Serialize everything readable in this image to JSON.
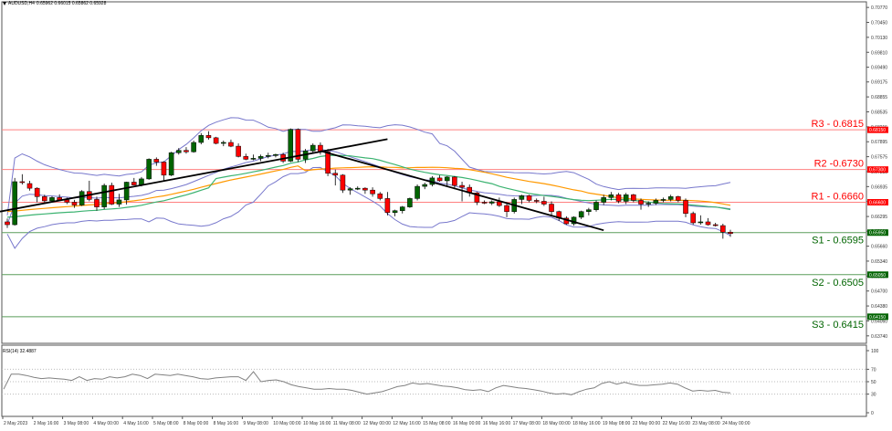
{
  "header": {
    "symbol_timeframe": "AUDUSD,H4",
    "ohlc": "0.65962 0.66015 0.65862 0.65928"
  },
  "rsi_panel": {
    "label": "RSI(14) 32.4887",
    "axis_ticks": [
      "100",
      "70",
      "50",
      "30",
      "0"
    ]
  },
  "colors": {
    "bull": "#006400",
    "bear": "#ff0000",
    "resistance": "#ff0000",
    "support": "#006400",
    "bollinger": "#7777cc",
    "ma_fast": "#3cb371",
    "ma_slow": "#ff9900",
    "trendline": "#000000",
    "rsi_line": "#808080"
  },
  "chart_data": [
    {
      "type": "candlestick",
      "title": "AUDUSD,H4",
      "ohlc_last": {
        "open": 0.65962,
        "high": 0.66015,
        "low": 0.65862,
        "close": 0.65928
      },
      "y_axis_ticks": [
        "0.70770",
        "0.70450",
        "0.70130",
        "0.69810",
        "0.69490",
        "0.69175",
        "0.68855",
        "0.68535",
        "0.68215",
        "0.67895",
        "0.67575",
        "0.67255",
        "0.66935",
        "0.66615",
        "0.66295",
        "0.65980",
        "0.65660",
        "0.65340",
        "0.65020",
        "0.64700",
        "0.64380",
        "0.64060",
        "0.63740"
      ],
      "x_axis_ticks": [
        "2 May 2023",
        "2 May 16:00",
        "3 May 08:00",
        "4 May 00:00",
        "4 May 16:00",
        "5 May 08:00",
        "8 May 00:00",
        "8 May 16:00",
        "9 May 08:00",
        "10 May 00:00",
        "10 May 16:00",
        "11 May 08:00",
        "12 May 00:00",
        "12 May 16:00",
        "15 May 08:00",
        "16 May 00:00",
        "16 May 16:00",
        "17 May 08:00",
        "18 May 00:00",
        "18 May 16:00",
        "19 May 08:00",
        "22 May 00:00",
        "22 May 16:00",
        "23 May 08:00",
        "24 May 00:00"
      ],
      "levels": [
        {
          "name": "R3",
          "label": "R3 - 0.6815",
          "value": 0.6815,
          "tag": "0.68150",
          "kind": "resistance"
        },
        {
          "name": "R2",
          "label": "R2 -0.6730",
          "value": 0.673,
          "tag": "0.67300",
          "kind": "resistance"
        },
        {
          "name": "R1",
          "label": "R1 - 0.6660",
          "value": 0.666,
          "tag": "0.66600",
          "kind": "resistance"
        },
        {
          "name": "S1",
          "label": "S1 - 0.6595",
          "value": 0.6595,
          "tag": "0.65950",
          "kind": "support"
        },
        {
          "name": "S2",
          "label": "S2 - 0.6505",
          "value": 0.6505,
          "tag": "0.65050",
          "kind": "support"
        },
        {
          "name": "S3",
          "label": "S3 - 0.6415",
          "value": 0.6415,
          "tag": "0.64150",
          "kind": "support"
        }
      ],
      "candles": [
        [
          0.6618,
          0.6625,
          0.6605,
          0.6612
        ],
        [
          0.6612,
          0.6712,
          0.661,
          0.6704
        ],
        [
          0.6704,
          0.672,
          0.6698,
          0.6703
        ],
        [
          0.67,
          0.6706,
          0.6685,
          0.669
        ],
        [
          0.669,
          0.6692,
          0.666,
          0.6672
        ],
        [
          0.6672,
          0.6676,
          0.666,
          0.6663
        ],
        [
          0.6663,
          0.6673,
          0.666,
          0.667
        ],
        [
          0.667,
          0.6677,
          0.6664,
          0.6665
        ],
        [
          0.6665,
          0.667,
          0.6656,
          0.666
        ],
        [
          0.666,
          0.6665,
          0.6648,
          0.6654
        ],
        [
          0.6654,
          0.6686,
          0.6652,
          0.6683
        ],
        [
          0.6683,
          0.6706,
          0.6662,
          0.6666
        ],
        [
          0.6666,
          0.6672,
          0.6642,
          0.665
        ],
        [
          0.665,
          0.67,
          0.6645,
          0.6696
        ],
        [
          0.6696,
          0.6702,
          0.6654,
          0.6656
        ],
        [
          0.6656,
          0.6678,
          0.665,
          0.6665
        ],
        [
          0.6665,
          0.6704,
          0.6655,
          0.6703
        ],
        [
          0.6703,
          0.6712,
          0.6696,
          0.6697
        ],
        [
          0.6697,
          0.6714,
          0.6694,
          0.671
        ],
        [
          0.671,
          0.6754,
          0.6708,
          0.6752
        ],
        [
          0.6752,
          0.6756,
          0.6738,
          0.6746
        ],
        [
          0.6746,
          0.6748,
          0.6704,
          0.6718
        ],
        [
          0.6718,
          0.6768,
          0.6716,
          0.6766
        ],
        [
          0.6766,
          0.6776,
          0.6762,
          0.6771
        ],
        [
          0.6771,
          0.6778,
          0.6764,
          0.6768
        ],
        [
          0.6768,
          0.6792,
          0.6766,
          0.6788
        ],
        [
          0.6788,
          0.6808,
          0.6784,
          0.6803
        ],
        [
          0.6803,
          0.6812,
          0.6794,
          0.6798
        ],
        [
          0.6798,
          0.68,
          0.6784,
          0.6786
        ],
        [
          0.6786,
          0.6792,
          0.678,
          0.6788
        ],
        [
          0.6788,
          0.6794,
          0.6778,
          0.678
        ],
        [
          0.678,
          0.6786,
          0.6756,
          0.6758
        ],
        [
          0.6758,
          0.6764,
          0.675,
          0.6752
        ],
        [
          0.6752,
          0.6762,
          0.675,
          0.6754
        ],
        [
          0.6754,
          0.6762,
          0.6748,
          0.6758
        ],
        [
          0.6758,
          0.6766,
          0.6754,
          0.676
        ],
        [
          0.676,
          0.6764,
          0.6756,
          0.6762
        ],
        [
          0.6762,
          0.6766,
          0.6744,
          0.6748
        ],
        [
          0.6748,
          0.6818,
          0.6746,
          0.6816
        ],
        [
          0.6816,
          0.6818,
          0.6746,
          0.6752
        ],
        [
          0.6752,
          0.6774,
          0.6744,
          0.677
        ],
        [
          0.677,
          0.6786,
          0.6764,
          0.6782
        ],
        [
          0.6782,
          0.6788,
          0.6762,
          0.6768
        ],
        [
          0.6768,
          0.6774,
          0.6716,
          0.6722
        ],
        [
          0.6722,
          0.673,
          0.6696,
          0.6718
        ],
        [
          0.6718,
          0.672,
          0.668,
          0.6686
        ],
        [
          0.6686,
          0.6692,
          0.6676,
          0.6689
        ],
        [
          0.6689,
          0.6694,
          0.6686,
          0.669
        ],
        [
          0.669,
          0.6692,
          0.6678,
          0.6686
        ],
        [
          0.6686,
          0.6692,
          0.6672,
          0.6678
        ],
        [
          0.6678,
          0.6682,
          0.6664,
          0.6668
        ],
        [
          0.6668,
          0.6682,
          0.6632,
          0.6638
        ],
        [
          0.6638,
          0.6644,
          0.663,
          0.6642
        ],
        [
          0.6642,
          0.6652,
          0.6636,
          0.665
        ],
        [
          0.665,
          0.667,
          0.6648,
          0.6668
        ],
        [
          0.6668,
          0.6698,
          0.6664,
          0.6694
        ],
        [
          0.6694,
          0.6702,
          0.6688,
          0.6698
        ],
        [
          0.6698,
          0.6716,
          0.6694,
          0.6712
        ],
        [
          0.6712,
          0.6718,
          0.6704,
          0.6706
        ],
        [
          0.6706,
          0.6716,
          0.6694,
          0.6714
        ],
        [
          0.6714,
          0.6716,
          0.6688,
          0.6696
        ],
        [
          0.6696,
          0.6704,
          0.6662,
          0.6692
        ],
        [
          0.6692,
          0.6698,
          0.6672,
          0.668
        ],
        [
          0.668,
          0.6682,
          0.6654,
          0.666
        ],
        [
          0.666,
          0.6664,
          0.6656,
          0.6658
        ],
        [
          0.6658,
          0.6664,
          0.6654,
          0.6661
        ],
        [
          0.6661,
          0.667,
          0.665,
          0.6653
        ],
        [
          0.6653,
          0.6658,
          0.6628,
          0.664
        ],
        [
          0.664,
          0.667,
          0.6636,
          0.6666
        ],
        [
          0.6666,
          0.6676,
          0.6656,
          0.6674
        ],
        [
          0.6674,
          0.6676,
          0.666,
          0.6664
        ],
        [
          0.6664,
          0.6668,
          0.6658,
          0.6662
        ],
        [
          0.6662,
          0.6672,
          0.6652,
          0.6656
        ],
        [
          0.6656,
          0.6662,
          0.663,
          0.664
        ],
        [
          0.664,
          0.6642,
          0.662,
          0.6626
        ],
        [
          0.6626,
          0.663,
          0.6612,
          0.6614
        ],
        [
          0.6614,
          0.663,
          0.661,
          0.6628
        ],
        [
          0.6628,
          0.6642,
          0.6624,
          0.664
        ],
        [
          0.664,
          0.6648,
          0.6632,
          0.6644
        ],
        [
          0.6644,
          0.6664,
          0.664,
          0.666
        ],
        [
          0.666,
          0.6676,
          0.6654,
          0.667
        ],
        [
          0.667,
          0.6682,
          0.6664,
          0.6676
        ],
        [
          0.6676,
          0.668,
          0.6658,
          0.6662
        ],
        [
          0.6662,
          0.668,
          0.6656,
          0.6676
        ],
        [
          0.6676,
          0.6678,
          0.666,
          0.6664
        ],
        [
          0.6664,
          0.6668,
          0.6644,
          0.6656
        ],
        [
          0.6656,
          0.6662,
          0.665,
          0.6658
        ],
        [
          0.6658,
          0.6668,
          0.6654,
          0.6664
        ],
        [
          0.6664,
          0.667,
          0.666,
          0.6666
        ],
        [
          0.6666,
          0.6676,
          0.6662,
          0.6672
        ],
        [
          0.6672,
          0.6674,
          0.666,
          0.6664
        ],
        [
          0.6664,
          0.6668,
          0.6628,
          0.6636
        ],
        [
          0.6636,
          0.664,
          0.6612,
          0.6616
        ],
        [
          0.6616,
          0.6632,
          0.6612,
          0.6618
        ],
        [
          0.6618,
          0.6626,
          0.661,
          0.6612
        ],
        [
          0.6612,
          0.6616,
          0.6608,
          0.661
        ],
        [
          0.661,
          0.6614,
          0.6582,
          0.6596
        ],
        [
          0.6596,
          0.6601,
          0.6586,
          0.6593
        ]
      ],
      "trendlines": [
        {
          "from": [
            0,
            0.664
          ],
          "to": [
            51,
            0.6795
          ]
        },
        {
          "from": [
            43,
            0.677
          ],
          "to": [
            80,
            0.66
          ]
        }
      ]
    },
    {
      "type": "line",
      "title": "RSI(14) 32.4887",
      "ylim": [
        0,
        100
      ],
      "gridlines": [
        70,
        50,
        30
      ],
      "values": [
        38,
        62,
        62,
        60,
        57,
        55,
        56,
        55,
        54,
        52,
        58,
        52,
        55,
        54,
        58,
        56,
        58,
        62,
        60,
        55,
        62,
        61,
        60,
        62,
        60,
        58,
        55,
        54,
        56,
        57,
        58,
        58,
        52,
        66,
        50,
        52,
        53,
        50,
        45,
        42,
        40,
        38,
        38,
        39,
        38,
        38,
        36,
        33,
        30,
        32,
        34,
        38,
        42,
        44,
        48,
        46,
        47,
        45,
        43,
        42,
        40,
        37,
        36,
        37,
        34,
        40,
        44,
        42,
        40,
        39,
        37,
        35,
        32,
        30,
        31,
        29,
        34,
        38,
        40,
        47,
        50,
        46,
        49,
        46,
        44,
        44,
        45,
        46,
        48,
        46,
        40,
        35,
        36,
        35,
        36,
        33,
        32
      ]
    }
  ]
}
